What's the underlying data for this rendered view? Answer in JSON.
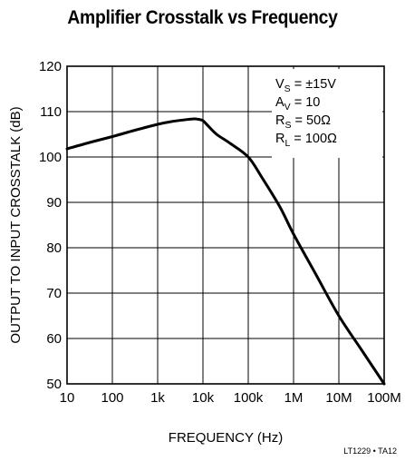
{
  "chart_data": {
    "type": "line",
    "title": "Amplifier Crosstalk vs Frequency",
    "xlabel": "FREQUENCY (Hz)",
    "ylabel": "OUTPUT TO INPUT CROSSTALK (dB)",
    "x_scale": "log",
    "xlim": [
      10,
      100000000
    ],
    "ylim": [
      50,
      120
    ],
    "x_ticks": [
      10,
      100,
      1000,
      10000,
      100000,
      1000000,
      10000000,
      100000000
    ],
    "x_tick_labels": [
      "10",
      "100",
      "1k",
      "10k",
      "100k",
      "1M",
      "10M",
      "100M"
    ],
    "y_ticks": [
      50,
      60,
      70,
      80,
      90,
      100,
      110,
      120
    ],
    "y_tick_labels": [
      "50",
      "60",
      "70",
      "80",
      "90",
      "100",
      "110",
      "120"
    ],
    "grid": true,
    "annotations": [
      {
        "base": "V",
        "sub": "S",
        "rest": " = ±15V"
      },
      {
        "base": "A",
        "sub": "V",
        "rest": " = 10"
      },
      {
        "base": "R",
        "sub": "S",
        "rest": " = 50Ω"
      },
      {
        "base": "R",
        "sub": "L",
        "rest": " = 100Ω"
      }
    ],
    "annotation_position": "top-right",
    "footer_code": "LT1229 • TA12",
    "series": [
      {
        "x": [
          10,
          31.6,
          100,
          316,
          1000,
          2000,
          4000,
          6300,
          8000,
          10000,
          12600,
          20000,
          40000,
          100000,
          200000,
          500000,
          1000000,
          3160000,
          10000000,
          31600000,
          100000000
        ],
        "values": [
          101.8,
          103.2,
          104.5,
          105.9,
          107.2,
          107.8,
          108.2,
          108.4,
          108.3,
          108.0,
          107.0,
          105.0,
          103.0,
          100.0,
          95.5,
          89.0,
          83.0,
          74.0,
          65.0,
          57.5,
          50.0
        ]
      }
    ]
  }
}
